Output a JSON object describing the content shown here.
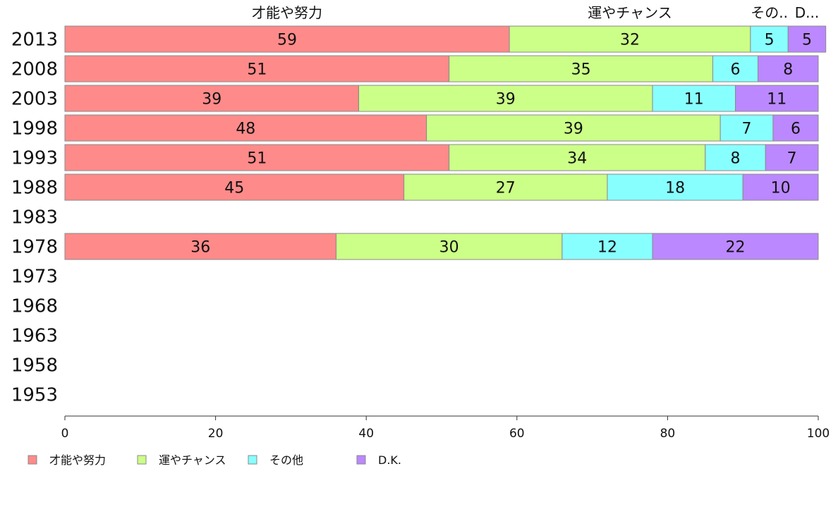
{
  "chart_data": {
    "type": "bar",
    "orientation": "horizontal",
    "stacked": true,
    "categories": [
      "2013",
      "2008",
      "2003",
      "1998",
      "1993",
      "1988",
      "1983",
      "1978",
      "1973",
      "1968",
      "1963",
      "1958",
      "1953"
    ],
    "series": [
      {
        "name": "才能や努力",
        "color": "#ff8a8a",
        "values": [
          59,
          51,
          39,
          48,
          51,
          45,
          null,
          36,
          null,
          null,
          null,
          null,
          null
        ]
      },
      {
        "name": "運やチャンス",
        "color": "#ccff88",
        "values": [
          32,
          35,
          39,
          39,
          34,
          27,
          null,
          30,
          null,
          null,
          null,
          null,
          null
        ]
      },
      {
        "name": "その他",
        "color": "#88ffff",
        "values": [
          5,
          6,
          11,
          7,
          8,
          18,
          null,
          12,
          null,
          null,
          null,
          null,
          null
        ]
      },
      {
        "name": "D.K.",
        "color": "#bb88ff",
        "values": [
          5,
          8,
          11,
          6,
          7,
          10,
          null,
          22,
          null,
          null,
          null,
          null,
          null
        ]
      }
    ],
    "top_labels": [
      "才能や努力",
      "運やチャンス",
      "その..",
      "D..."
    ],
    "xlim": [
      0,
      100
    ],
    "xticks": [
      0,
      20,
      40,
      60,
      80,
      100
    ],
    "grid": false,
    "legend_position": "bottom-left"
  }
}
